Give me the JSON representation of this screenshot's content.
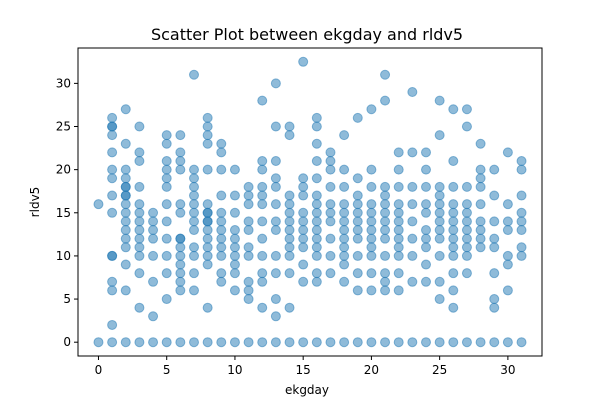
{
  "chart_data": {
    "type": "scatter",
    "title": "Scatter Plot between ekgday and rldv5",
    "xlabel": "ekgday",
    "ylabel": "rldv5",
    "xlim": [
      -1.5,
      32.5
    ],
    "ylim": [
      -1.6,
      34.1
    ],
    "xticks": [
      0,
      5,
      10,
      15,
      20,
      25,
      30
    ],
    "yticks": [
      0,
      5,
      10,
      15,
      20,
      25,
      30
    ],
    "grid": false,
    "marker_color": "#1f77b4",
    "marker_alpha": 0.5,
    "x": [
      0,
      1,
      2,
      3,
      4,
      5,
      6,
      7,
      8,
      9,
      10,
      11,
      12,
      13,
      14,
      15,
      16,
      17,
      18,
      19,
      20,
      21,
      22,
      23,
      24,
      25,
      26,
      27,
      28,
      29,
      30,
      31,
      0,
      1,
      1,
      1,
      1,
      1,
      1,
      1,
      1,
      1,
      1,
      1,
      1,
      1,
      1,
      2,
      2,
      2,
      2,
      2,
      2,
      2,
      2,
      2,
      2,
      2,
      2,
      2,
      2,
      2,
      2,
      3,
      3,
      3,
      3,
      3,
      3,
      3,
      3,
      3,
      3,
      3,
      3,
      3,
      4,
      4,
      4,
      4,
      4,
      4,
      4,
      5,
      5,
      5,
      5,
      5,
      5,
      5,
      5,
      5,
      5,
      5,
      5,
      6,
      6,
      6,
      6,
      6,
      6,
      6,
      6,
      6,
      6,
      6,
      6,
      6,
      6,
      7,
      7,
      7,
      7,
      7,
      7,
      7,
      7,
      7,
      7,
      7,
      7,
      7,
      8,
      8,
      8,
      8,
      8,
      8,
      8,
      8,
      8,
      8,
      8,
      8,
      8,
      8,
      8,
      8,
      9,
      9,
      9,
      9,
      9,
      9,
      9,
      9,
      9,
      9,
      9,
      9,
      10,
      10,
      10,
      10,
      10,
      10,
      10,
      10,
      10,
      10,
      11,
      11,
      11,
      11,
      11,
      11,
      11,
      11,
      11,
      11,
      12,
      12,
      12,
      12,
      12,
      12,
      12,
      12,
      12,
      12,
      12,
      12,
      13,
      13,
      13,
      13,
      13,
      13,
      13,
      13,
      13,
      13,
      13,
      13,
      14,
      14,
      14,
      14,
      14,
      14,
      14,
      14,
      14,
      14,
      14,
      14,
      15,
      15,
      15,
      15,
      15,
      15,
      15,
      15,
      15,
      15,
      15,
      16,
      16,
      16,
      16,
      16,
      16,
      16,
      16,
      16,
      16,
      16,
      16,
      16,
      16,
      16,
      17,
      17,
      17,
      17,
      17,
      17,
      17,
      17,
      17,
      17,
      18,
      18,
      18,
      18,
      18,
      18,
      18,
      18,
      18,
      18,
      18,
      18,
      19,
      19,
      19,
      19,
      19,
      19,
      19,
      19,
      19,
      19,
      19,
      20,
      20,
      20,
      20,
      20,
      20,
      20,
      20,
      20,
      20,
      20,
      20,
      21,
      21,
      21,
      21,
      21,
      21,
      21,
      21,
      21,
      21,
      21,
      21,
      21,
      22,
      22,
      22,
      22,
      22,
      22,
      22,
      22,
      22,
      22,
      22,
      22,
      23,
      23,
      23,
      23,
      23,
      23,
      23,
      23,
      24,
      24,
      24,
      24,
      24,
      24,
      24,
      24,
      24,
      24,
      25,
      25,
      25,
      25,
      25,
      25,
      25,
      25,
      25,
      25,
      25,
      25,
      26,
      26,
      26,
      26,
      26,
      26,
      26,
      26,
      26,
      26,
      26,
      26,
      26,
      27,
      27,
      27,
      27,
      27,
      27,
      27,
      27,
      27,
      27,
      27,
      28,
      28,
      28,
      28,
      28,
      28,
      28,
      28,
      28,
      29,
      29,
      29,
      29,
      29,
      29,
      29,
      29,
      30,
      30,
      30,
      30,
      30,
      30,
      30,
      31,
      31,
      31,
      31,
      31,
      31,
      31,
      31
    ],
    "y": [
      0,
      0,
      0,
      0,
      0,
      0,
      0,
      0,
      0,
      0,
      0,
      0,
      0,
      0,
      0,
      0,
      0,
      0,
      0,
      0,
      0,
      0,
      0,
      0,
      0,
      0,
      0,
      0,
      0,
      0,
      0,
      0,
      16,
      2,
      6,
      7,
      10,
      10,
      15,
      17,
      19,
      20,
      22,
      24,
      25,
      25,
      26,
      6,
      9,
      11,
      12,
      13,
      14,
      15,
      16,
      17,
      17,
      18,
      18,
      19,
      20,
      23,
      27,
      4,
      8,
      10,
      11,
      12,
      13,
      14,
      15,
      16,
      18,
      21,
      22,
      25,
      3,
      7,
      10,
      12,
      13,
      14,
      15,
      5,
      8,
      10,
      12,
      14,
      16,
      18,
      19,
      20,
      21,
      23,
      24,
      6,
      7,
      8,
      9,
      10,
      11,
      12,
      12,
      15,
      16,
      20,
      21,
      22,
      24,
      6,
      8,
      10,
      11,
      13,
      14,
      15,
      16,
      17,
      18,
      19,
      20,
      31,
      4,
      9,
      10,
      11,
      12,
      13,
      14,
      14,
      15,
      15,
      16,
      20,
      23,
      24,
      25,
      26,
      7,
      8,
      10,
      11,
      12,
      13,
      14,
      15,
      17,
      20,
      22,
      23,
      6,
      8,
      9,
      10,
      11,
      12,
      13,
      15,
      17,
      20,
      5,
      6,
      7,
      10,
      11,
      13,
      14,
      16,
      17,
      18,
      4,
      7,
      8,
      10,
      12,
      14,
      16,
      17,
      18,
      20,
      21,
      28,
      3,
      5,
      8,
      10,
      13,
      14,
      16,
      18,
      19,
      21,
      25,
      30,
      4,
      8,
      10,
      11,
      12,
      13,
      14,
      15,
      16,
      17,
      24,
      25,
      7,
      9,
      11,
      12,
      13,
      14,
      15,
      17,
      18,
      19,
      32.5,
      7,
      8,
      10,
      11,
      12,
      13,
      14,
      15,
      16,
      17,
      19,
      21,
      23,
      25,
      26,
      8,
      10,
      12,
      14,
      15,
      16,
      18,
      20,
      21,
      22,
      7,
      9,
      10,
      11,
      12,
      13,
      14,
      15,
      16,
      18,
      20,
      24,
      6,
      8,
      10,
      12,
      13,
      14,
      15,
      16,
      17,
      19,
      26,
      6,
      8,
      10,
      11,
      12,
      13,
      14,
      15,
      16,
      18,
      20,
      27,
      6,
      7,
      8,
      10,
      12,
      13,
      14,
      15,
      16,
      17,
      18,
      28,
      31,
      6,
      8,
      10,
      11,
      12,
      13,
      14,
      15,
      16,
      18,
      20,
      22,
      7,
      10,
      12,
      14,
      16,
      18,
      22,
      29,
      7,
      9,
      11,
      12,
      13,
      15,
      16,
      18,
      20,
      22,
      5,
      7,
      10,
      12,
      13,
      14,
      15,
      16,
      17,
      18,
      24,
      28,
      4,
      6,
      8,
      10,
      11,
      12,
      13,
      14,
      15,
      16,
      18,
      21,
      27,
      8,
      10,
      11,
      12,
      13,
      14,
      15,
      16,
      18,
      25,
      27,
      11,
      12,
      13,
      14,
      16,
      18,
      19,
      20,
      23,
      4,
      5,
      8,
      11,
      12,
      14,
      17,
      20,
      6,
      9,
      10,
      13,
      14,
      16,
      22,
      10,
      11,
      14,
      15,
      17,
      20,
      21,
      13
    ]
  }
}
